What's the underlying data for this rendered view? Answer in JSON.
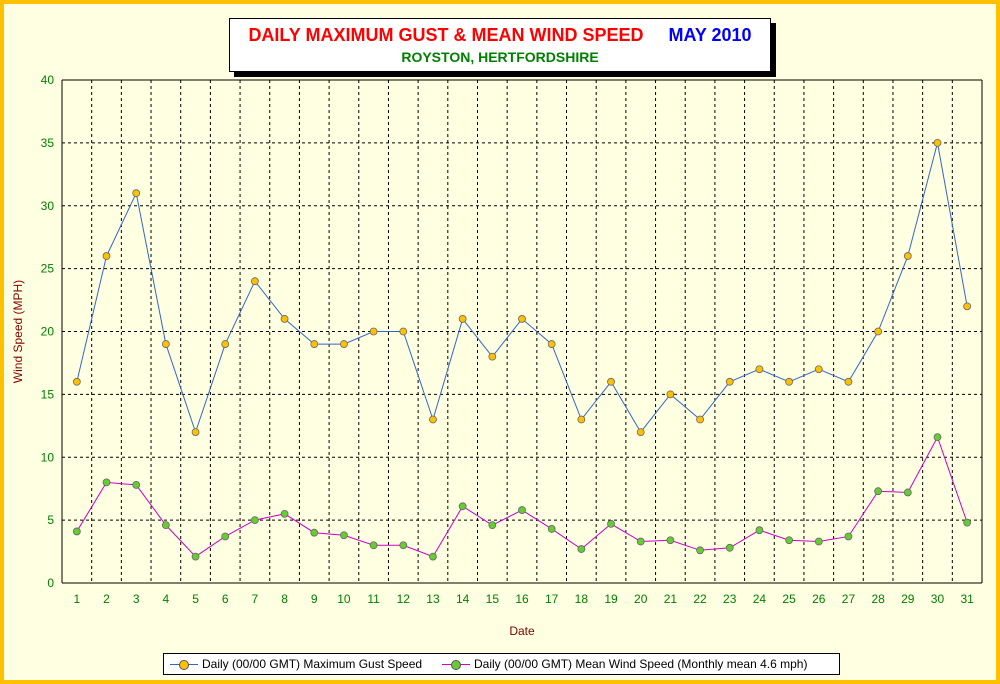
{
  "chart_data": {
    "type": "line",
    "title": "DAILY MAXIMUM GUST & MEAN WIND SPEED",
    "title_month": "MAY 2010",
    "subtitle": "ROYSTON, HERTFORDSHIRE",
    "xlabel": "Date",
    "ylabel": "Wind Speed (MPH)",
    "ylim": [
      0,
      40
    ],
    "yticks": [
      "0",
      "5",
      "10",
      "15",
      "20",
      "25",
      "30",
      "35",
      "40"
    ],
    "categories": [
      "1",
      "2",
      "3",
      "4",
      "5",
      "6",
      "7",
      "8",
      "9",
      "10",
      "11",
      "12",
      "13",
      "14",
      "15",
      "16",
      "17",
      "18",
      "19",
      "20",
      "21",
      "22",
      "23",
      "24",
      "25",
      "26",
      "27",
      "28",
      "29",
      "30",
      "31"
    ],
    "grid": true,
    "legend_position": "bottom",
    "series": [
      {
        "name": "Daily (00/00 GMT) Maximum Gust Speed",
        "line_color": "#3366CC",
        "marker_color": "#FFC000",
        "values": [
          16,
          26,
          31,
          19,
          12,
          19,
          24,
          21,
          19,
          19,
          20,
          20,
          13,
          21,
          18,
          21,
          19,
          13,
          16,
          12,
          15,
          13,
          16,
          17,
          16,
          17,
          16,
          20,
          26,
          35,
          22
        ]
      },
      {
        "name": "Daily (00/00 GMT) Mean Wind Speed (Monthly mean 4.6 mph)",
        "line_color": "#CC00CC",
        "marker_color": "#66CC33",
        "values": [
          4.1,
          8.0,
          7.8,
          4.6,
          2.1,
          3.7,
          5.0,
          5.5,
          4.0,
          3.8,
          3.0,
          3.0,
          2.1,
          6.1,
          4.6,
          5.8,
          4.3,
          2.7,
          4.7,
          3.3,
          3.4,
          2.6,
          2.8,
          4.2,
          3.4,
          3.3,
          3.7,
          7.3,
          7.2,
          11.6,
          4.8
        ]
      }
    ]
  },
  "colors": {
    "frame": "#FFC000",
    "background": "#FFFFE1",
    "title": "#FF0000",
    "month": "#0000FF",
    "subtitle": "#008000",
    "axis_text": "#008000",
    "axis_title": "#800000"
  }
}
